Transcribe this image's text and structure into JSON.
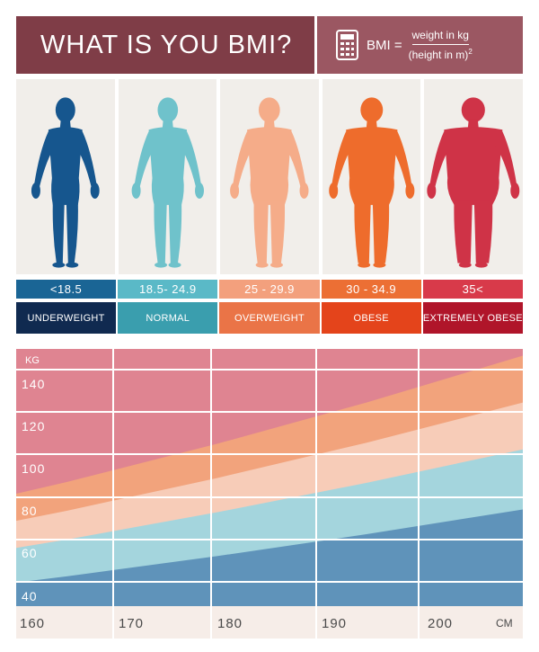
{
  "header": {
    "title": "WHAT IS YOU BMI?",
    "formula_label": "BMI =",
    "formula_numerator": "weight in kg",
    "formula_denominator": "(height in m)",
    "formula_exponent": "2"
  },
  "categories": [
    {
      "range": "<18.5",
      "label": "UNDERWEIGHT",
      "figure_color": "#16568e",
      "range_color": "#1a6595",
      "label_color": "#102a50"
    },
    {
      "range": "18.5- 24.9",
      "label": "NORMAL",
      "figure_color": "#6fc2cb",
      "range_color": "#5ab9c7",
      "label_color": "#3a9eae"
    },
    {
      "range": "25 - 29.9",
      "label": "OVERWEIGHT",
      "figure_color": "#f5ac89",
      "range_color": "#f3a07d",
      "label_color": "#ea7447"
    },
    {
      "range": "30 - 34.9",
      "label": "OBESE",
      "figure_color": "#ee6c2c",
      "range_color": "#ec6f34",
      "label_color": "#e4441b"
    },
    {
      "range": "35<",
      "label": "EXTREMELY OBESE",
      "figure_color": "#cf3347",
      "range_color": "#d83a4a",
      "label_color": "#b0152a"
    }
  ],
  "chart_data": {
    "type": "area",
    "ylabel": "KG",
    "xlabel": "CM",
    "x_ticks": [
      "160",
      "170",
      "180",
      "190",
      "200"
    ],
    "y_ticks": [
      "140",
      "120",
      "100",
      "80",
      "60",
      "40"
    ],
    "x_unit": "CM",
    "y_unit": "KG",
    "xlim": [
      160,
      210
    ],
    "ylim": [
      35,
      150
    ],
    "bands": [
      {
        "name": "UNDERWEIGHT",
        "color": "#5f93ba",
        "bmi_upper": 18.5
      },
      {
        "name": "NORMAL",
        "color": "#a4d5dd",
        "bmi_upper": 24.9
      },
      {
        "name": "OVERWEIGHT",
        "color": "#f7ccb8",
        "bmi_upper": 29.9
      },
      {
        "name": "OBESE",
        "color": "#f2a37c",
        "bmi_upper": 34.9
      },
      {
        "name": "EXTREMELY OBESE",
        "color": "#df8491",
        "bmi_upper": null
      }
    ],
    "grid": true,
    "bottom_strip_color": "#f6ede8"
  }
}
